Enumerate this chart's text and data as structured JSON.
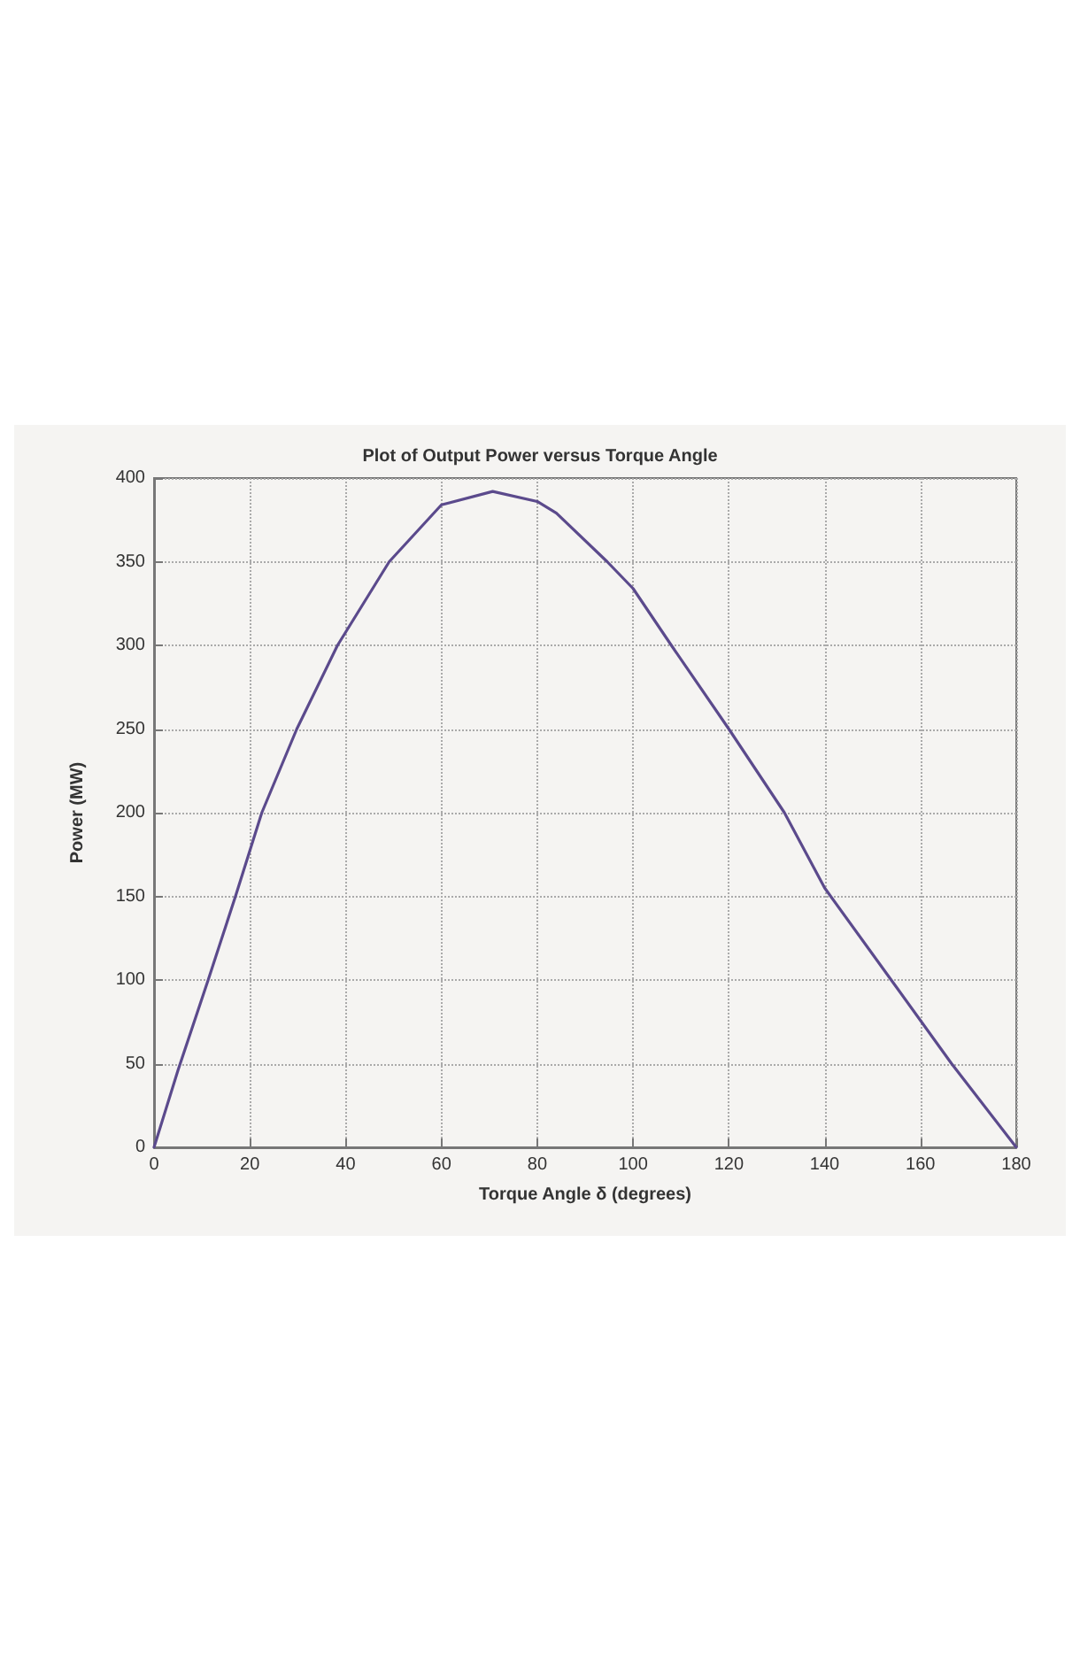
{
  "chart_data": {
    "type": "line",
    "title": "Plot of Output Power versus Torque Angle",
    "xlabel": "Torque Angle δ (degrees)",
    "ylabel": "Power (MW)",
    "series": [
      {
        "color": "#5b4a8c",
        "x": [
          0,
          5,
          11.3,
          17,
          22.5,
          29.8,
          38.3,
          49.1,
          60,
          70.7,
          80,
          84,
          94.6,
          100,
          108,
          120,
          131.6,
          140,
          153.9,
          166.5,
          180
        ],
        "values": [
          0,
          46,
          100,
          150,
          200,
          250,
          300,
          350,
          384,
          392,
          386,
          379,
          350,
          334,
          300,
          250,
          200,
          155,
          100,
          50,
          0
        ]
      }
    ],
    "xlim": [
      0,
      180
    ],
    "xticks": [
      0,
      20,
      40,
      60,
      80,
      100,
      120,
      140,
      160,
      180
    ],
    "ylim": [
      0,
      400
    ],
    "yticks": [
      0,
      50,
      100,
      150,
      200,
      250,
      300,
      350,
      400
    ],
    "grid": true,
    "marker": "none",
    "line_style": "solid"
  }
}
